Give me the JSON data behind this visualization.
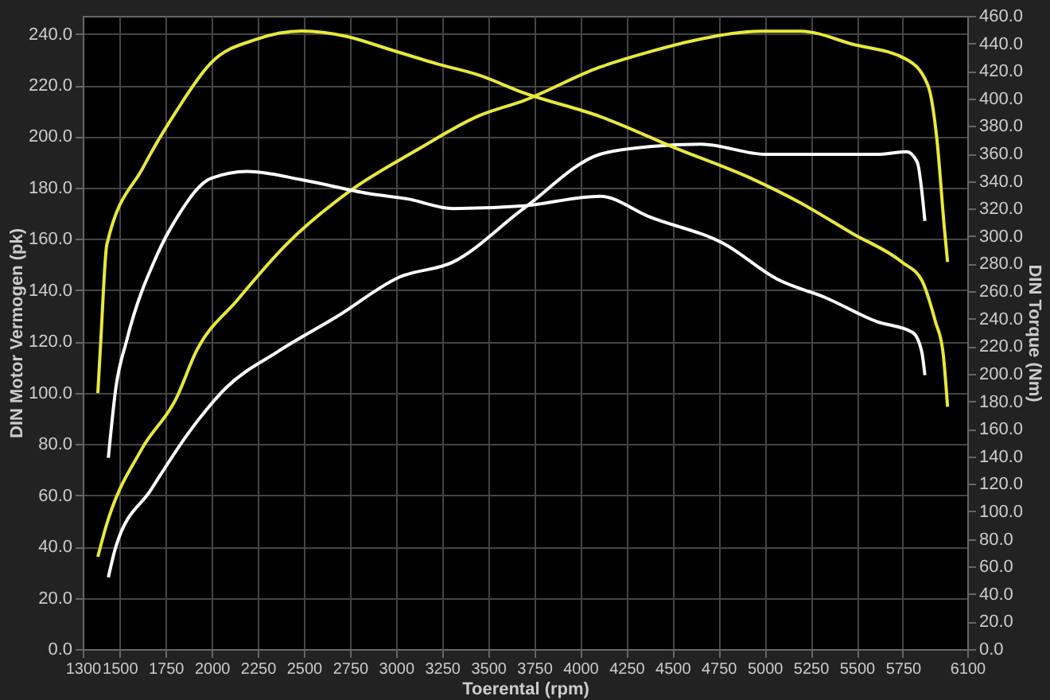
{
  "chart_data": {
    "type": "line",
    "xlabel": "Toerental (rpm)",
    "ylabel": "DIN Motor Vermogen (pk)",
    "y2label": "DIN Torque (Nm)",
    "xlim": [
      1300,
      6100
    ],
    "xticks": [
      1300,
      1500,
      1750,
      2000,
      2250,
      2500,
      2750,
      3000,
      3250,
      3500,
      3750,
      4000,
      4250,
      4500,
      4750,
      5000,
      5250,
      5500,
      5750,
      6100
    ],
    "ylim": [
      0,
      247
    ],
    "yticks": [
      {
        "value": 0,
        "label": "0.0"
      },
      {
        "value": 20,
        "label": "20.0"
      },
      {
        "value": 40,
        "label": "40.0"
      },
      {
        "value": 60,
        "label": "60.0"
      },
      {
        "value": 80,
        "label": "80.0"
      },
      {
        "value": 100,
        "label": "100.0"
      },
      {
        "value": 120,
        "label": "120.0"
      },
      {
        "value": 140,
        "label": "140.0"
      },
      {
        "value": 160,
        "label": "160.0"
      },
      {
        "value": 180,
        "label": "180.0"
      },
      {
        "value": 200,
        "label": "200.0"
      },
      {
        "value": 220,
        "label": "220.0"
      },
      {
        "value": 240,
        "label": "240.0"
      }
    ],
    "y2lim": [
      0,
      460
    ],
    "y2ticks": [
      {
        "value": 0,
        "label": "0.0"
      },
      {
        "value": 20,
        "label": "20.0"
      },
      {
        "value": 40,
        "label": "40.0"
      },
      {
        "value": 60,
        "label": "60.0"
      },
      {
        "value": 80,
        "label": "80.0"
      },
      {
        "value": 100,
        "label": "100.0"
      },
      {
        "value": 120,
        "label": "120.0"
      },
      {
        "value": 140,
        "label": "140.0"
      },
      {
        "value": 160,
        "label": "160.0"
      },
      {
        "value": 180,
        "label": "180.0"
      },
      {
        "value": 200,
        "label": "200.0"
      },
      {
        "value": 220,
        "label": "220.0"
      },
      {
        "value": 240,
        "label": "240.0"
      },
      {
        "value": 260,
        "label": "260.0"
      },
      {
        "value": 280,
        "label": "280.0"
      },
      {
        "value": 300,
        "label": "300.0"
      },
      {
        "value": 320,
        "label": "320.0"
      },
      {
        "value": 340,
        "label": "340.0"
      },
      {
        "value": 360,
        "label": "360.0"
      },
      {
        "value": 380,
        "label": "380.0"
      },
      {
        "value": 400,
        "label": "400.0"
      },
      {
        "value": 420,
        "label": "420.0"
      },
      {
        "value": 440,
        "label": "440.0"
      },
      {
        "value": 460,
        "label": "460.0"
      }
    ],
    "grid": true,
    "legend": false,
    "marker": "none",
    "line_style": "solid",
    "series": [
      {
        "color": "#e8e83a",
        "axis": "y2",
        "x": [
          1382,
          1398,
          1431,
          1628,
          1809,
          1997,
          2243,
          2489,
          2735,
          2957,
          3228,
          3449,
          3695,
          4106,
          4516,
          4926,
          5197,
          5476,
          5747,
          5853,
          5927,
          5968,
          5993
        ],
        "values": [
          186,
          224,
          294,
          350,
          391,
          426,
          443,
          449,
          445,
          436,
          425,
          417,
          404,
          387,
          364,
          342,
          324,
          302,
          281,
          268,
          238,
          216,
          176
        ]
      },
      {
        "color": "#e8e83a",
        "x": [
          1382,
          1423,
          1620,
          1809,
          1915,
          2137,
          2407,
          2736,
          3121,
          3449,
          3695,
          4106,
          4376,
          4655,
          4983,
          5197,
          5476,
          5771,
          5886,
          5935,
          5976,
          5993
        ],
        "values": [
          36,
          47,
          78,
          98,
          116,
          136,
          158,
          178,
          195,
          208,
          214,
          227,
          233,
          238,
          241,
          241,
          236,
          230,
          220,
          199,
          164,
          151
        ]
      },
      {
        "color": "#ffffff",
        "axis": "y2",
        "x": [
          1439,
          1480,
          1538,
          1702,
          1809,
          1997,
          2194,
          2489,
          2850,
          3064,
          3310,
          3695,
          4106,
          4376,
          4786,
          5065,
          5336,
          5607,
          5804,
          5853,
          5870
        ],
        "values": [
          139,
          190,
          224,
          286,
          313,
          342,
          347,
          341,
          331,
          327,
          320,
          322,
          329,
          314,
          294,
          269,
          255,
          238,
          230,
          216,
          199
        ]
      },
      {
        "color": "#ffffff",
        "x": [
          1439,
          1480,
          1669,
          1891,
          2079,
          2358,
          2686,
          3015,
          3310,
          3695,
          4106,
          4376,
          4655,
          5008,
          5336,
          5607,
          5771,
          5828,
          5870
        ],
        "values": [
          28,
          40,
          62,
          86,
          102,
          116,
          130,
          145,
          151,
          172,
          193,
          196,
          197,
          193,
          193,
          193,
          194,
          190,
          167
        ]
      }
    ]
  }
}
